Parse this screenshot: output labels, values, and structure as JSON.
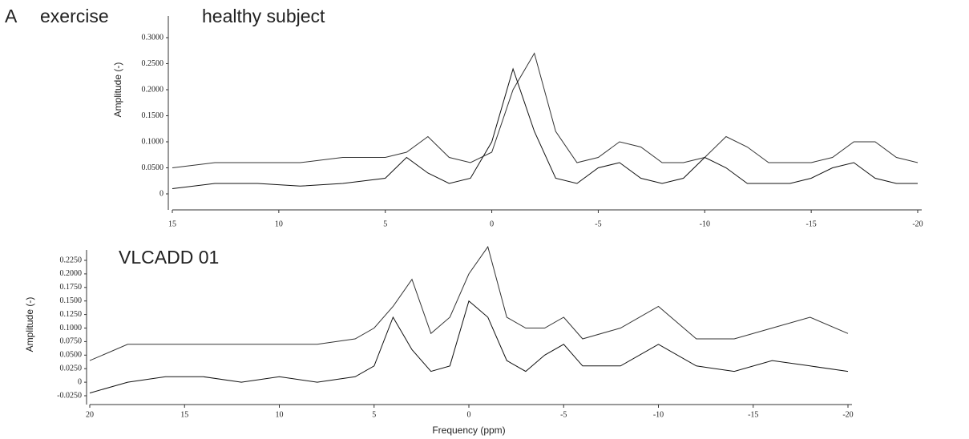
{
  "panel_label": "A",
  "condition": "exercise",
  "chart_data": [
    {
      "type": "line",
      "title": "healthy subject",
      "y_label": "Amplitude (-)",
      "x": [
        15,
        13,
        11,
        9,
        7,
        5,
        4,
        3,
        2,
        1,
        0,
        -1,
        -2,
        -3,
        -4,
        -5,
        -6,
        -7,
        -8,
        -9,
        -10,
        -11,
        -12,
        -13,
        -14,
        -15,
        -16,
        -17,
        -18,
        -19,
        -20
      ],
      "series": [
        {
          "color": "#333333",
          "values": [
            0.05,
            0.06,
            0.06,
            0.06,
            0.07,
            0.07,
            0.08,
            0.11,
            0.07,
            0.06,
            0.08,
            0.2,
            0.27,
            0.12,
            0.06,
            0.07,
            0.1,
            0.09,
            0.06,
            0.06,
            0.07,
            0.11,
            0.09,
            0.06,
            0.06,
            0.06,
            0.07,
            0.1,
            0.1,
            0.07,
            0.06
          ]
        },
        {
          "color": "#111111",
          "values": [
            0.01,
            0.02,
            0.02,
            0.015,
            0.02,
            0.03,
            0.07,
            0.04,
            0.02,
            0.03,
            0.1,
            0.24,
            0.12,
            0.03,
            0.02,
            0.05,
            0.06,
            0.03,
            0.02,
            0.03,
            0.07,
            0.05,
            0.02,
            0.02,
            0.02,
            0.03,
            0.05,
            0.06,
            0.03,
            0.02,
            0.02
          ]
        }
      ],
      "xlim": [
        15,
        -20
      ],
      "xticks": [
        15,
        10,
        5,
        0,
        -5,
        -10,
        -15,
        -20
      ],
      "ylim": [
        0,
        0.3
      ],
      "yticks": [
        0,
        {
          "value": 0.05,
          "label": "0.0500"
        },
        {
          "value": 0.1,
          "label": "0.1000"
        },
        {
          "value": 0.15,
          "label": "0.1500"
        },
        {
          "value": 0.2,
          "label": "0.2000"
        },
        {
          "value": 0.25,
          "label": "0.2500"
        },
        {
          "value": 0.3,
          "label": "0.3000"
        }
      ]
    },
    {
      "type": "line",
      "title": "VLCADD 01",
      "x_label": "Frequency (ppm)",
      "y_label": "Amplitude (-)",
      "x": [
        20,
        18,
        16,
        14,
        12,
        10,
        8,
        6,
        5,
        4,
        3,
        2,
        1,
        0,
        -1,
        -2,
        -3,
        -4,
        -5,
        -6,
        -8,
        -10,
        -12,
        -14,
        -16,
        -18,
        -20
      ],
      "series": [
        {
          "color": "#333333",
          "values": [
            0.04,
            0.07,
            0.07,
            0.07,
            0.07,
            0.07,
            0.07,
            0.08,
            0.1,
            0.14,
            0.19,
            0.09,
            0.12,
            0.2,
            0.25,
            0.12,
            0.1,
            0.1,
            0.12,
            0.08,
            0.1,
            0.14,
            0.08,
            0.08,
            0.1,
            0.12,
            0.09
          ]
        },
        {
          "color": "#111111",
          "values": [
            -0.02,
            0,
            0.01,
            0.01,
            0.0,
            0.01,
            0.0,
            0.01,
            0.03,
            0.12,
            0.06,
            0.02,
            0.03,
            0.15,
            0.12,
            0.04,
            0.02,
            0.05,
            0.07,
            0.03,
            0.03,
            0.07,
            0.03,
            0.02,
            0.04,
            0.03,
            0.02
          ]
        }
      ],
      "xlim": [
        20,
        -20
      ],
      "xticks": [
        20,
        15,
        10,
        5,
        0,
        -5,
        -10,
        -15,
        -20
      ],
      "ylim": [
        -0.025,
        0.225
      ],
      "yticks": [
        {
          "value": -0.025,
          "label": "-0.0250"
        },
        0,
        {
          "value": 0.025,
          "label": "0.0250"
        },
        {
          "value": 0.05,
          "label": "0.0500"
        },
        {
          "value": 0.075,
          "label": "0.0750"
        },
        {
          "value": 0.1,
          "label": "0.1000"
        },
        {
          "value": 0.125,
          "label": "0.1250"
        },
        {
          "value": 0.15,
          "label": "0.1500"
        },
        {
          "value": 0.175,
          "label": "0.1750"
        },
        {
          "value": 0.2,
          "label": "0.2000"
        },
        {
          "value": 0.225,
          "label": "0.2250"
        }
      ]
    }
  ]
}
